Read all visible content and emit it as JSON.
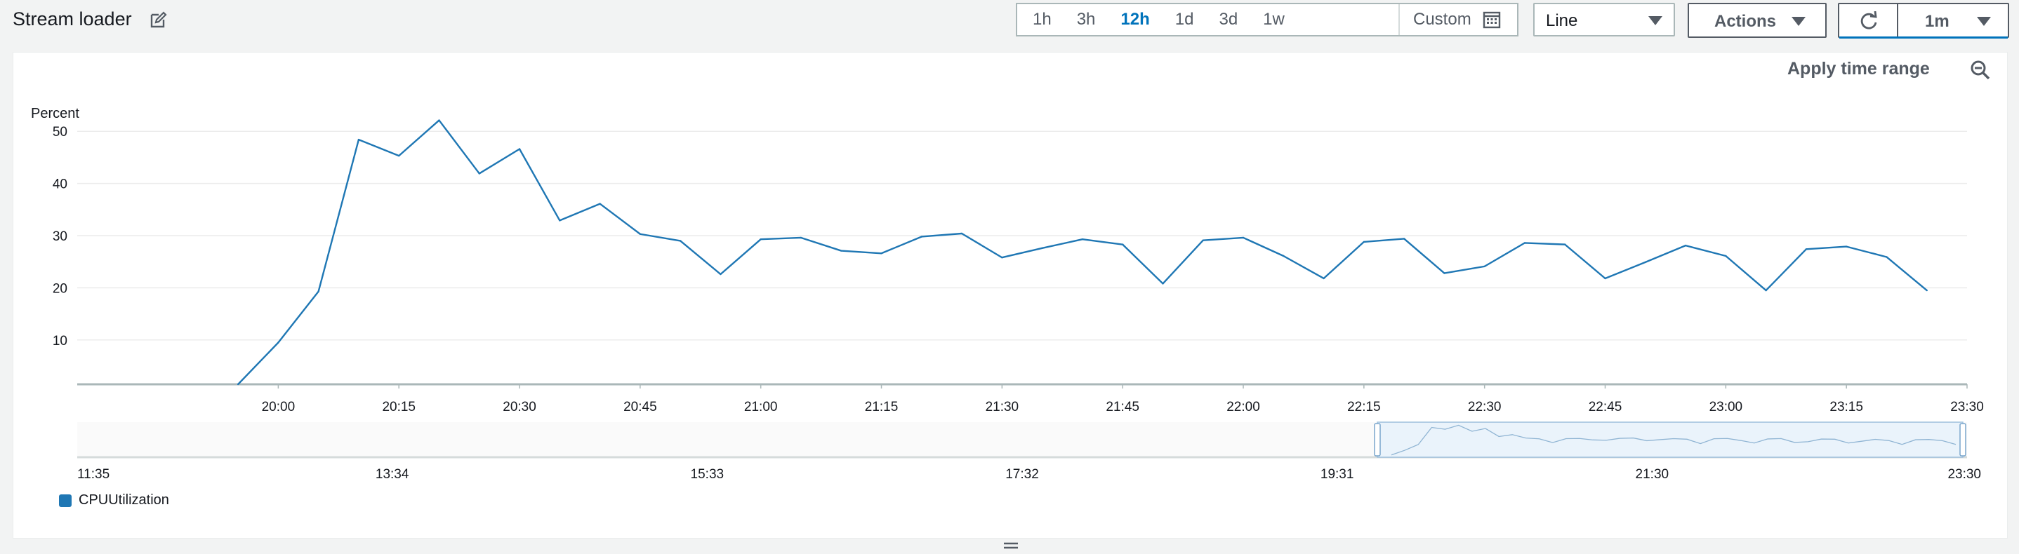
{
  "header": {
    "title": "Stream loader",
    "time_ranges": [
      "1h",
      "3h",
      "12h",
      "1d",
      "3d",
      "1w"
    ],
    "active_range": "12h",
    "custom_label": "Custom",
    "view_select": "Line",
    "actions_label": "Actions",
    "refresh_interval": "1m"
  },
  "panel": {
    "apply_time_range_label": "Apply time range"
  },
  "colors": {
    "series": "#1f77b4",
    "accent": "#0073bb"
  },
  "icons": [
    "edit-icon",
    "calendar-icon",
    "caret-down-icon",
    "refresh-icon",
    "zoom-out-icon"
  ],
  "chart_data": {
    "type": "line",
    "ylabel": "Percent",
    "ylim": [
      1.5,
      55
    ],
    "yticks": [
      10,
      20,
      30,
      40,
      50
    ],
    "xlim_minutes": [
      1175,
      1410
    ],
    "xticks": [
      "20:00",
      "20:15",
      "20:30",
      "20:45",
      "21:00",
      "21:15",
      "21:30",
      "21:45",
      "22:00",
      "22:15",
      "22:30",
      "22:45",
      "23:00",
      "23:15",
      "23:30"
    ],
    "series": [
      {
        "name": "CPUUtilization",
        "x": [
          "19:55",
          "20:00",
          "20:05",
          "20:10",
          "20:15",
          "20:20",
          "20:25",
          "20:30",
          "20:35",
          "20:40",
          "20:45",
          "20:50",
          "20:55",
          "21:00",
          "21:05",
          "21:10",
          "21:15",
          "21:20",
          "21:25",
          "21:30",
          "21:35",
          "21:40",
          "21:45",
          "21:50",
          "21:55",
          "22:00",
          "22:05",
          "22:10",
          "22:15",
          "22:20",
          "22:25",
          "22:30",
          "22:35",
          "22:40",
          "22:45",
          "22:50",
          "22:55",
          "23:00",
          "23:05",
          "23:10",
          "23:15",
          "23:20",
          "23:25"
        ],
        "values": [
          1.5,
          9.5,
          19.3,
          48.4,
          45.3,
          52.1,
          41.9,
          46.6,
          32.9,
          36.1,
          30.3,
          29.0,
          22.6,
          29.3,
          29.6,
          27.1,
          26.6,
          29.8,
          30.4,
          25.8,
          27.6,
          29.3,
          28.3,
          20.8,
          29.1,
          29.6,
          26.1,
          21.8,
          28.8,
          29.4,
          22.8,
          24.1,
          28.6,
          28.3,
          21.8,
          24.9,
          28.1,
          26.1,
          19.5,
          27.4,
          27.9,
          25.9,
          19.5
        ]
      }
    ],
    "grid": true,
    "legend_position": "bottom-left"
  },
  "navigator": {
    "tick_labels": [
      "11:35",
      "13:34",
      "15:33",
      "17:32",
      "19:31",
      "21:30",
      "23:30"
    ]
  }
}
